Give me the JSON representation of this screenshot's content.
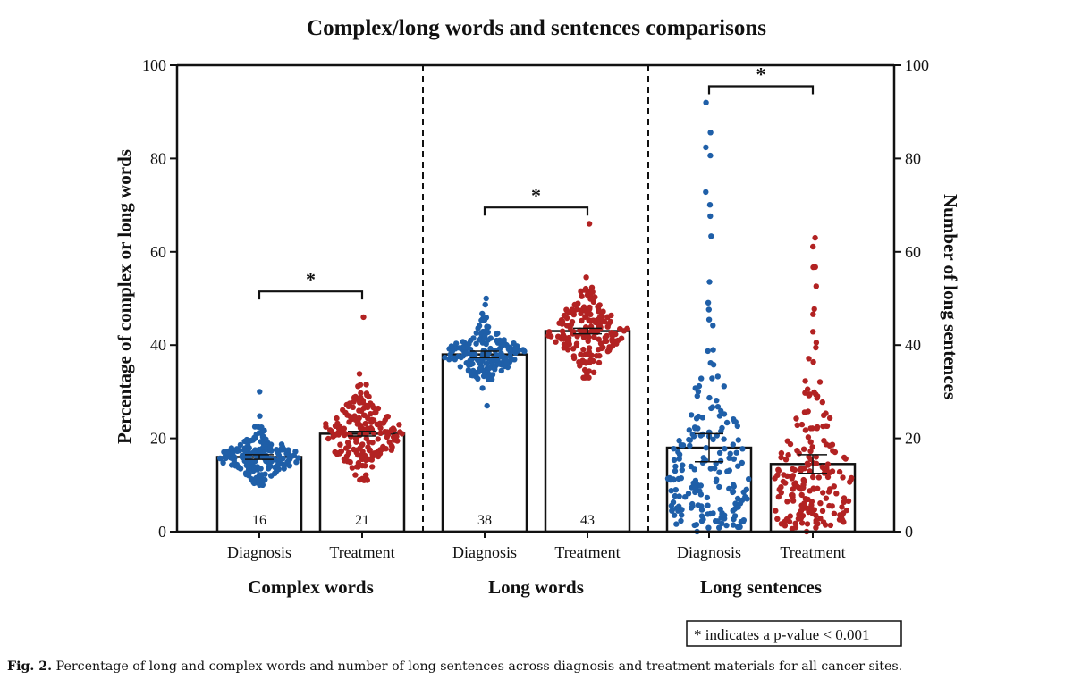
{
  "chart_data": {
    "type": "bar",
    "title": "Complex/long words and sentences comparisons",
    "ylabel_left": "Percentage of complex or long words",
    "ylabel_right": "Number of long sentences",
    "ylim": [
      0,
      100
    ],
    "yticks": [
      "0",
      "20",
      "40",
      "60",
      "80",
      "100"
    ],
    "grid": false,
    "groups": [
      {
        "name": "Complex words",
        "axis": "left",
        "categories": [
          "Diagnosis",
          "Treatment"
        ],
        "values": [
          16,
          21
        ],
        "value_labels": [
          "16",
          "21"
        ],
        "error": [
          0.5,
          0.5
        ],
        "point_ranges": [
          [
            10,
            30
          ],
          [
            11,
            46
          ]
        ],
        "significance": "*"
      },
      {
        "name": "Long words",
        "axis": "left",
        "categories": [
          "Diagnosis",
          "Treatment"
        ],
        "values": [
          38,
          43
        ],
        "value_labels": [
          "38",
          "43"
        ],
        "error": [
          0.7,
          0.6
        ],
        "point_ranges": [
          [
            27,
            50
          ],
          [
            33,
            66
          ]
        ],
        "significance": "*"
      },
      {
        "name": "Long sentences",
        "axis": "right",
        "categories": [
          "Diagnosis",
          "Treatment"
        ],
        "values": [
          18,
          14.5
        ],
        "value_labels": [
          "",
          ""
        ],
        "error": [
          3,
          2
        ],
        "point_ranges": [
          [
            0,
            92
          ],
          [
            0,
            63
          ]
        ],
        "significance": "*"
      }
    ],
    "series_colors": {
      "Diagnosis": "#1f5fa8",
      "Treatment": "#b22222"
    },
    "legend": "* indicates a p-value < 0.001",
    "legend_position": "bottom-right"
  },
  "caption": {
    "label": "Fig. 2.",
    "text": "Percentage of long and complex words and number of long sentences across diagnosis and treatment materials for all cancer sites."
  }
}
